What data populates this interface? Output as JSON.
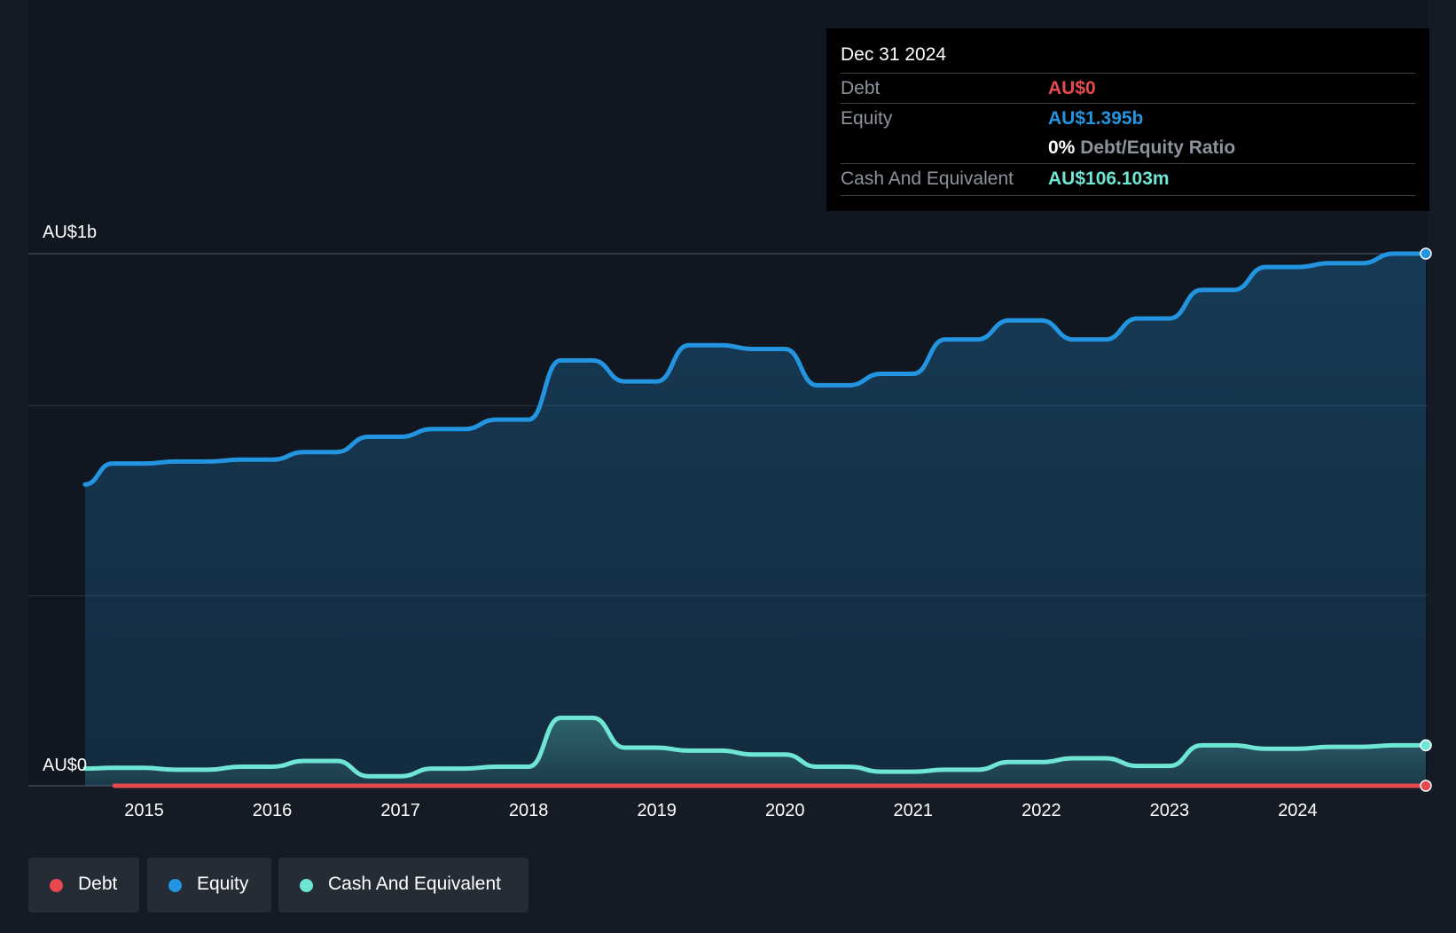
{
  "tooltip": {
    "date": "Dec 31 2024",
    "debt_label": "Debt",
    "debt_value": "AU$0",
    "equity_label": "Equity",
    "equity_value": "AU$1.395b",
    "ratio_value": "0%",
    "ratio_label": "Debt/Equity Ratio",
    "cash_label": "Cash And Equivalent",
    "cash_value": "AU$106.103m"
  },
  "legend": [
    {
      "label": "Debt",
      "color": "#e64a4f"
    },
    {
      "label": "Equity",
      "color": "#2394df"
    },
    {
      "label": "Cash And Equivalent",
      "color": "#6ee6d3"
    }
  ],
  "colors": {
    "debt": "#e64a4f",
    "equity": "#2394df",
    "cash": "#6ee6d3",
    "background": "#151b25",
    "plot_background": "#111720"
  },
  "chart_data": {
    "type": "area",
    "ylim": [
      0,
      1395
    ],
    "y_unit": "AU$ millions",
    "y_tick_labels": [
      "AU$0",
      "AU$1b"
    ],
    "x_ticks": [
      2015,
      2016,
      2017,
      2018,
      2019,
      2020,
      2021,
      2022,
      2023,
      2024
    ],
    "x_range": [
      2014.54,
      2025.0
    ],
    "grid": true,
    "legend_position": "bottom-left",
    "series": [
      {
        "name": "Equity",
        "x": [
          2014.54,
          2014.75,
          2015.0,
          2015.25,
          2015.5,
          2015.75,
          2016.0,
          2016.25,
          2016.5,
          2016.75,
          2017.0,
          2017.25,
          2017.5,
          2017.75,
          2018.0,
          2018.25,
          2018.5,
          2018.75,
          2019.0,
          2019.25,
          2019.5,
          2019.75,
          2020.0,
          2020.25,
          2020.5,
          2020.75,
          2021.0,
          2021.25,
          2021.5,
          2021.75,
          2022.0,
          2022.25,
          2022.5,
          2022.75,
          2023.0,
          2023.25,
          2023.5,
          2023.75,
          2024.0,
          2024.25,
          2024.5,
          2024.75,
          2025.0
        ],
        "values": [
          790,
          845,
          845,
          850,
          850,
          855,
          855,
          875,
          875,
          915,
          915,
          935,
          935,
          960,
          960,
          1115,
          1115,
          1060,
          1060,
          1155,
          1155,
          1145,
          1145,
          1050,
          1050,
          1080,
          1080,
          1170,
          1170,
          1220,
          1220,
          1170,
          1170,
          1225,
          1225,
          1300,
          1300,
          1360,
          1360,
          1370,
          1370,
          1395,
          1395
        ]
      },
      {
        "name": "Cash And Equivalent",
        "x": [
          2014.54,
          2014.75,
          2015.0,
          2015.25,
          2015.5,
          2015.75,
          2016.0,
          2016.25,
          2016.5,
          2016.75,
          2017.0,
          2017.25,
          2017.5,
          2017.75,
          2018.0,
          2018.25,
          2018.5,
          2018.75,
          2019.0,
          2019.25,
          2019.5,
          2019.75,
          2020.0,
          2020.25,
          2020.5,
          2020.75,
          2021.0,
          2021.25,
          2021.5,
          2021.75,
          2022.0,
          2022.25,
          2022.5,
          2022.75,
          2023.0,
          2023.25,
          2023.5,
          2023.75,
          2024.0,
          2024.25,
          2024.5,
          2024.75,
          2025.0
        ],
        "values": [
          45,
          47,
          47,
          42,
          42,
          50,
          50,
          65,
          65,
          25,
          25,
          45,
          45,
          50,
          50,
          178,
          178,
          100,
          100,
          92,
          92,
          82,
          82,
          50,
          50,
          37,
          37,
          42,
          42,
          62,
          62,
          72,
          72,
          52,
          52,
          106,
          106,
          97,
          97,
          102,
          102,
          106,
          106
        ]
      },
      {
        "name": "Debt",
        "x": [
          2014.77,
          2025.0
        ],
        "values": [
          0,
          0
        ]
      }
    ]
  }
}
